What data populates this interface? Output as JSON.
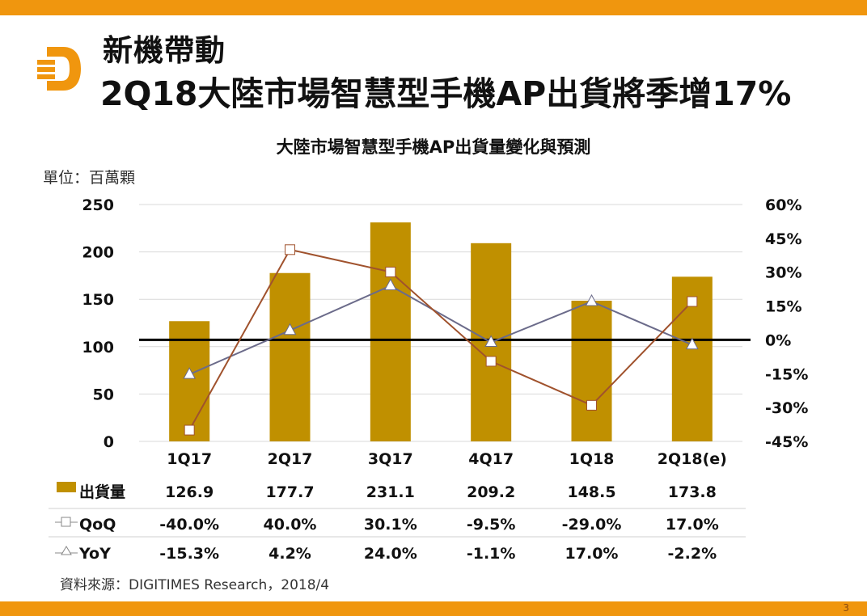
{
  "slide": {
    "title_line1": "新機帶動",
    "title_line2": "2Q18大陸市場智慧型手機AP出貨將季增17%",
    "logo_icon": "digitimes-d-logo-icon",
    "page_number": "3",
    "source": "資料來源：DIGITIMES Research，2018/4",
    "colors": {
      "accent_bar": "#f0960e",
      "bar": "#c09000",
      "qoq_line": "#a0522d",
      "yoy_line": "#6b6b8a"
    }
  },
  "chart_data": {
    "type": "bar",
    "title": "大陸市場智慧型手機AP出貨量變化與預測",
    "unit_label": "單位：百萬顆",
    "categories": [
      "1Q17",
      "2Q17",
      "3Q17",
      "4Q17",
      "1Q18",
      "2Q18(e)"
    ],
    "left_axis": {
      "ylim": [
        0,
        250
      ],
      "ticks": [
        "0",
        "50",
        "100",
        "150",
        "200",
        "250"
      ]
    },
    "right_axis": {
      "ylim": [
        -45,
        60
      ],
      "ticks": [
        "-45%",
        "-30%",
        "-15%",
        "0%",
        "15%",
        "30%",
        "45%",
        "60%"
      ]
    },
    "grid": true,
    "series": [
      {
        "name": "出貨量",
        "type": "bar",
        "axis": "left",
        "values": [
          126.9,
          177.7,
          231.1,
          209.2,
          148.5,
          173.8
        ],
        "labels": [
          "126.9",
          "177.7",
          "231.1",
          "209.2",
          "148.5",
          "173.8"
        ]
      },
      {
        "name": "QoQ",
        "type": "line",
        "marker": "square",
        "axis": "right",
        "values": [
          -40.0,
          40.0,
          30.1,
          -9.5,
          -29.0,
          17.0
        ],
        "labels": [
          "-40.0%",
          "40.0%",
          "30.1%",
          "-9.5%",
          "-29.0%",
          "17.0%"
        ]
      },
      {
        "name": "YoY",
        "type": "line",
        "marker": "triangle",
        "axis": "right",
        "values": [
          -15.3,
          4.2,
          24.0,
          -1.1,
          17.0,
          -2.2
        ],
        "labels": [
          "-15.3%",
          "4.2%",
          "24.0%",
          "-1.1%",
          "17.0%",
          "-2.2%"
        ]
      }
    ],
    "legend": "data-table-below"
  }
}
